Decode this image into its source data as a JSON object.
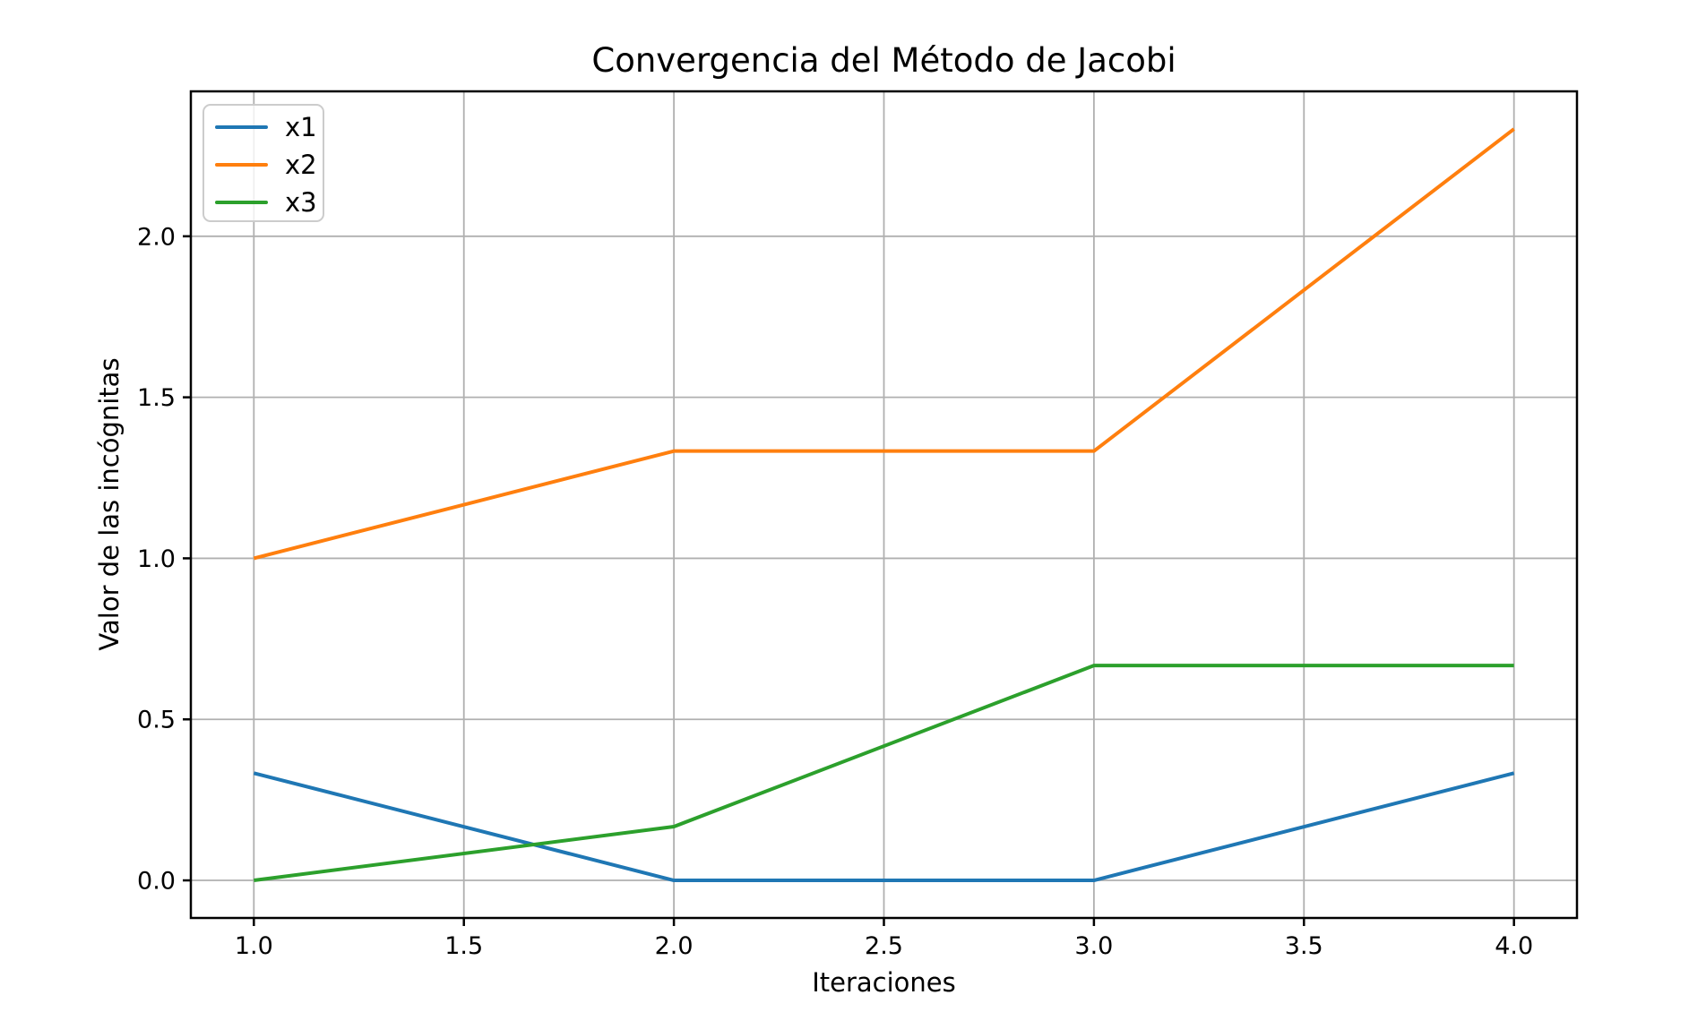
{
  "chart_data": {
    "type": "line",
    "title": "Convergencia del Método de Jacobi",
    "xlabel": "Iteraciones",
    "ylabel": "Valor de las incógnitas",
    "x": [
      1,
      2,
      3,
      4
    ],
    "series": [
      {
        "name": "x1",
        "color": "#1f77b4",
        "values": [
          0.333,
          0.0,
          0.0,
          0.333
        ]
      },
      {
        "name": "x2",
        "color": "#ff7f0e",
        "values": [
          1.0,
          1.333,
          1.333,
          2.333
        ]
      },
      {
        "name": "x3",
        "color": "#2ca02c",
        "values": [
          0.0,
          0.167,
          0.667,
          0.667
        ]
      }
    ],
    "xticks": {
      "values": [
        1.0,
        1.5,
        2.0,
        2.5,
        3.0,
        3.5,
        4.0
      ],
      "labels": [
        "1.0",
        "1.5",
        "2.0",
        "2.5",
        "3.0",
        "3.5",
        "4.0"
      ]
    },
    "yticks": {
      "values": [
        0.0,
        0.5,
        1.0,
        1.5,
        2.0
      ],
      "labels": [
        "0.0",
        "0.5",
        "1.0",
        "1.5",
        "2.0"
      ]
    },
    "xlim": [
      0.85,
      4.15
    ],
    "ylim": [
      -0.1167,
      2.45
    ],
    "grid": true,
    "legend": {
      "position": "upper-left",
      "entries": [
        "x1",
        "x2",
        "x3"
      ]
    },
    "colors": {
      "grid": "#b0b0b0",
      "spine": "#000000",
      "background": "#ffffff",
      "legend_edge": "#cccccc",
      "text": "#000000"
    }
  }
}
